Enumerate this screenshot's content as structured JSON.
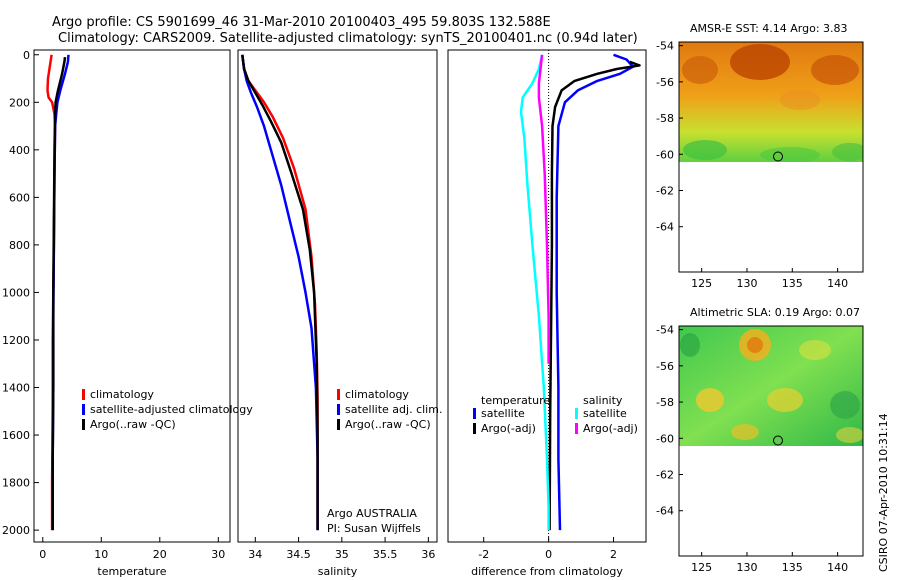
{
  "header": {
    "line1": "Argo profile: CS 5901699_46 31-Mar-2010 20100403_495 59.803S 132.588E",
    "line2": "Climatology: CARS2009. Satellite-adjusted climatology: synTS_20100401.nc (0.94d later)"
  },
  "signature": "CSIRO 07-Apr-2010 10:31:14",
  "colors": {
    "climatology": "#ff0000",
    "satellite": "#0000ff",
    "argo": "#000000",
    "salinity_satellite": "#00ffff",
    "salinity_argo": "#ff00ff"
  },
  "chart_data": [
    {
      "id": "temperature",
      "type": "line",
      "xlabel": "temperature",
      "ylabel": "",
      "xlim": [
        -1.5,
        32
      ],
      "ylim": [
        2050,
        -20
      ],
      "xticks": [
        0,
        10,
        20,
        30
      ],
      "yticks": [
        0,
        200,
        400,
        600,
        800,
        1000,
        1200,
        1400,
        1600,
        1800,
        2000
      ],
      "legend": [
        "climatology",
        "satellite-adjusted climatology",
        "Argo(..raw -QC)"
      ],
      "series": [
        {
          "name": "climatology",
          "color": "#ff0000",
          "x": [
            1.5,
            1.2,
            0.9,
            0.8,
            1.0,
            1.6,
            2.0,
            2.1,
            2.0,
            1.9,
            1.8,
            1.7,
            1.7,
            1.6,
            1.6
          ],
          "y": [
            0,
            50,
            100,
            150,
            180,
            200,
            250,
            300,
            500,
            800,
            1000,
            1200,
            1500,
            1800,
            2000
          ]
        },
        {
          "name": "satellite-adjusted climatology",
          "color": "#0000ff",
          "x": [
            4.4,
            4.3,
            3.8,
            3.0,
            2.5,
            2.3,
            2.1,
            2.0,
            1.9,
            1.8,
            1.8,
            1.7,
            1.7
          ],
          "y": [
            0,
            30,
            80,
            150,
            200,
            250,
            300,
            500,
            800,
            1100,
            1400,
            1700,
            2000
          ]
        },
        {
          "name": "Argo(..raw -QC)",
          "color": "#000000",
          "x": [
            3.8,
            3.7,
            3.3,
            2.6,
            2.2,
            2.1,
            2.0,
            1.9,
            1.8,
            1.8,
            1.7,
            1.7
          ],
          "y": [
            10,
            30,
            80,
            150,
            200,
            260,
            400,
            700,
            1000,
            1400,
            1700,
            2000
          ]
        }
      ]
    },
    {
      "id": "salinity",
      "type": "line",
      "xlabel": "salinity",
      "ylabel": "",
      "xlim": [
        33.8,
        36.1
      ],
      "ylim": [
        2050,
        -20
      ],
      "xticks": [
        34,
        34.5,
        35,
        35.5,
        36
      ],
      "xtick_labels": [
        "34",
        "34.5",
        "35",
        "35.5",
        "36"
      ],
      "legend": [
        "climatology",
        "satellite adj. clim.",
        "Argo(..raw -QC)"
      ],
      "annotation": [
        "Argo AUSTRALIA",
        "PI: Susan Wijffels"
      ],
      "series": [
        {
          "name": "climatology",
          "color": "#ff0000",
          "x": [
            33.85,
            33.87,
            33.92,
            34.0,
            34.1,
            34.2,
            34.32,
            34.45,
            34.58,
            34.65,
            34.69,
            34.71,
            34.72,
            34.72,
            34.72,
            34.72
          ],
          "y": [
            0,
            60,
            110,
            150,
            200,
            260,
            350,
            480,
            650,
            850,
            1050,
            1250,
            1450,
            1650,
            1850,
            2000
          ]
        },
        {
          "name": "satellite adj. clim.",
          "color": "#0000ff",
          "x": [
            33.85,
            33.87,
            33.9,
            33.95,
            34.02,
            34.1,
            34.18,
            34.3,
            34.4,
            34.5,
            34.58,
            34.65,
            34.7,
            34.72,
            34.72
          ],
          "y": [
            0,
            60,
            110,
            160,
            220,
            300,
            400,
            550,
            700,
            850,
            1000,
            1150,
            1400,
            1700,
            2000
          ]
        },
        {
          "name": "Argo(..raw -QC)",
          "color": "#000000",
          "x": [
            33.85,
            33.87,
            33.92,
            34.0,
            34.08,
            34.18,
            34.3,
            34.42,
            34.55,
            34.63,
            34.68,
            34.71,
            34.72,
            34.72
          ],
          "y": [
            0,
            60,
            110,
            160,
            210,
            280,
            370,
            500,
            650,
            820,
            1000,
            1300,
            1600,
            2000
          ]
        }
      ]
    },
    {
      "id": "difference",
      "type": "line",
      "xlabel": "difference from climatology",
      "ylabel": "",
      "xlim": [
        -3.1,
        3.0
      ],
      "ylim": [
        2050,
        -20
      ],
      "xticks": [
        -2,
        0,
        2
      ],
      "legend_temperature_title": "temperature",
      "legend_salinity_title": "salinity",
      "legend_temperature": [
        "satellite",
        "Argo(-adj)"
      ],
      "legend_salinity": [
        "satellite",
        "Argo(-adj)"
      ],
      "series": [
        {
          "name": "temperature satellite",
          "color": "#0000ff",
          "x": [
            2.0,
            2.4,
            2.6,
            2.2,
            1.5,
            0.9,
            0.5,
            0.3,
            0.25,
            0.25,
            0.3,
            0.3,
            0.35
          ],
          "y": [
            0,
            20,
            50,
            80,
            110,
            150,
            200,
            300,
            600,
            1000,
            1400,
            1700,
            2000
          ]
        },
        {
          "name": "temperature Argo(-adj)",
          "color": "#000000",
          "x": [
            2.5,
            2.8,
            2.1,
            1.5,
            0.8,
            0.4,
            0.2,
            0.12,
            0.1,
            0.1,
            0.08,
            0.05,
            0.03
          ],
          "y": [
            30,
            45,
            60,
            80,
            110,
            150,
            220,
            300,
            500,
            800,
            1100,
            1500,
            2000
          ]
        },
        {
          "name": "salinity satellite",
          "color": "#00ffff",
          "x": [
            -0.2,
            -0.3,
            -0.5,
            -0.8,
            -0.85,
            -0.75,
            -0.65,
            -0.5,
            -0.3,
            -0.15,
            -0.05,
            0.0,
            0.0
          ],
          "y": [
            0,
            60,
            120,
            180,
            240,
            350,
            550,
            800,
            1100,
            1400,
            1700,
            1900,
            2000
          ]
        },
        {
          "name": "salinity Argo(-adj)",
          "color": "#ff00ff",
          "x": [
            -0.2,
            -0.25,
            -0.3,
            -0.3,
            -0.2,
            -0.12,
            -0.05,
            0.0,
            0.0
          ],
          "y": [
            0,
            60,
            120,
            180,
            300,
            500,
            800,
            1100,
            1300
          ]
        }
      ]
    },
    {
      "id": "sst_map",
      "type": "heatmap",
      "title": "AMSR-E SST: 4.14 Argo: 3.83",
      "xlim": [
        122.5,
        142.8
      ],
      "ylim": [
        -66.5,
        -53.8
      ],
      "xticks": [
        125,
        130,
        135,
        140
      ],
      "yticks": [
        -54,
        -56,
        -58,
        -60,
        -62,
        -64
      ],
      "data_lat_range": [
        -60.1,
        -53.8
      ],
      "argo_position": [
        132.588,
        -59.803
      ]
    },
    {
      "id": "sla_map",
      "type": "heatmap",
      "title": "Altimetric SLA: 0.19 Argo: 0.07",
      "xlim": [
        122.5,
        142.8
      ],
      "ylim": [
        -66.5,
        -53.8
      ],
      "xticks": [
        125,
        130,
        135,
        140
      ],
      "yticks": [
        -54,
        -56,
        -58,
        -60,
        -62,
        -64
      ],
      "data_lat_range": [
        -60.1,
        -53.8
      ],
      "argo_position": [
        132.588,
        -59.803
      ]
    }
  ]
}
